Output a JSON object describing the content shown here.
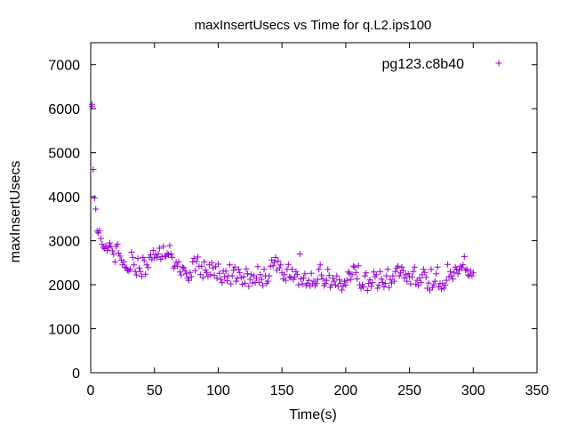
{
  "chart_data": {
    "type": "scatter",
    "title": "maxInsertUsecs vs Time for q.L2.ips100",
    "xlabel": "Time(s)",
    "ylabel": "maxInsertUsecs",
    "xlim": [
      0,
      350
    ],
    "ylim": [
      0,
      7500
    ],
    "xticks": [
      "0",
      "50",
      "100",
      "150",
      "200",
      "250",
      "300",
      "350"
    ],
    "yticks": [
      "0",
      "1000",
      "2000",
      "3000",
      "4000",
      "5000",
      "6000",
      "7000"
    ],
    "legend_position": "top-right",
    "marker": "plus",
    "grid": false,
    "series": [
      {
        "name": "pg123.c8b40",
        "color": "#9400d3",
        "points": [
          [
            1,
            6100
          ],
          [
            1,
            6050
          ],
          [
            2,
            4620
          ],
          [
            3,
            3970
          ],
          [
            4,
            3720
          ],
          [
            5,
            3220
          ],
          [
            6,
            3180
          ],
          [
            7,
            3230
          ],
          [
            8,
            3050
          ],
          [
            9,
            2920
          ],
          [
            10,
            2850
          ],
          [
            11,
            2820
          ],
          [
            12,
            2880
          ],
          [
            13,
            2780
          ],
          [
            14,
            2850
          ],
          [
            15,
            2950
          ],
          [
            16,
            2870
          ],
          [
            17,
            2770
          ],
          [
            18,
            2690
          ],
          [
            19,
            2520
          ],
          [
            20,
            2870
          ],
          [
            21,
            2920
          ],
          [
            22,
            2720
          ],
          [
            23,
            2650
          ],
          [
            24,
            2560
          ],
          [
            25,
            2450
          ],
          [
            26,
            2520
          ],
          [
            27,
            2400
          ],
          [
            28,
            2380
          ],
          [
            29,
            2330
          ],
          [
            30,
            2310
          ],
          [
            31,
            2350
          ],
          [
            32,
            2740
          ],
          [
            33,
            2620
          ],
          [
            34,
            2450
          ],
          [
            35,
            2300
          ],
          [
            36,
            2220
          ],
          [
            37,
            2600
          ],
          [
            38,
            2380
          ],
          [
            39,
            2300
          ],
          [
            40,
            2190
          ],
          [
            41,
            2620
          ],
          [
            42,
            2550
          ],
          [
            43,
            2240
          ],
          [
            44,
            2450
          ],
          [
            45,
            2390
          ],
          [
            46,
            2620
          ],
          [
            47,
            2680
          ],
          [
            48,
            2570
          ],
          [
            49,
            2780
          ],
          [
            50,
            2610
          ],
          [
            51,
            2690
          ],
          [
            52,
            2620
          ],
          [
            53,
            2700
          ],
          [
            54,
            2830
          ],
          [
            55,
            2580
          ],
          [
            56,
            2640
          ],
          [
            57,
            2870
          ],
          [
            58,
            2650
          ],
          [
            59,
            2640
          ],
          [
            60,
            2710
          ],
          [
            61,
            2680
          ],
          [
            62,
            2890
          ],
          [
            63,
            2700
          ],
          [
            64,
            2620
          ],
          [
            65,
            2380
          ],
          [
            66,
            2420
          ],
          [
            67,
            2510
          ],
          [
            68,
            2420
          ],
          [
            69,
            2520
          ],
          [
            70,
            2290
          ],
          [
            71,
            2220
          ],
          [
            72,
            2400
          ],
          [
            73,
            2380
          ],
          [
            74,
            2320
          ],
          [
            75,
            2250
          ],
          [
            76,
            2150
          ],
          [
            77,
            2100
          ],
          [
            78,
            2280
          ],
          [
            79,
            2180
          ],
          [
            80,
            2520
          ],
          [
            81,
            2600
          ],
          [
            82,
            2320
          ],
          [
            83,
            2530
          ],
          [
            84,
            2630
          ],
          [
            85,
            2420
          ],
          [
            86,
            2230
          ],
          [
            87,
            2420
          ],
          [
            88,
            2160
          ],
          [
            89,
            2520
          ],
          [
            90,
            2330
          ],
          [
            91,
            2280
          ],
          [
            92,
            2190
          ],
          [
            93,
            2450
          ],
          [
            94,
            2230
          ],
          [
            95,
            2500
          ],
          [
            96,
            2380
          ],
          [
            97,
            2210
          ],
          [
            98,
            2410
          ],
          [
            99,
            2150
          ],
          [
            100,
            2470
          ],
          [
            101,
            2260
          ],
          [
            102,
            2120
          ],
          [
            103,
            2050
          ],
          [
            104,
            2310
          ],
          [
            105,
            2180
          ],
          [
            106,
            2310
          ],
          [
            107,
            2090
          ],
          [
            108,
            2200
          ],
          [
            109,
            2450
          ],
          [
            110,
            2020
          ],
          [
            111,
            2200
          ],
          [
            112,
            2330
          ],
          [
            113,
            2400
          ],
          [
            114,
            2080
          ],
          [
            115,
            2150
          ],
          [
            116,
            2350
          ],
          [
            117,
            2270
          ],
          [
            118,
            2160
          ],
          [
            119,
            2010
          ],
          [
            120,
            2180
          ],
          [
            121,
            2030
          ],
          [
            122,
            2360
          ],
          [
            123,
            2250
          ],
          [
            124,
            1960
          ],
          [
            125,
            2120
          ],
          [
            126,
            2230
          ],
          [
            127,
            2040
          ],
          [
            128,
            2200
          ],
          [
            129,
            2050
          ],
          [
            130,
            2150
          ],
          [
            131,
            2410
          ],
          [
            132,
            2050
          ],
          [
            133,
            2230
          ],
          [
            134,
            2120
          ],
          [
            135,
            1980
          ],
          [
            136,
            2350
          ],
          [
            137,
            2200
          ],
          [
            138,
            2030
          ],
          [
            139,
            2080
          ],
          [
            140,
            2200
          ],
          [
            141,
            2420
          ],
          [
            142,
            2560
          ],
          [
            143,
            2430
          ],
          [
            144,
            2510
          ],
          [
            145,
            2620
          ],
          [
            146,
            2330
          ],
          [
            147,
            2540
          ],
          [
            148,
            2380
          ],
          [
            149,
            2450
          ],
          [
            150,
            2270
          ],
          [
            151,
            2130
          ],
          [
            152,
            2230
          ],
          [
            153,
            2100
          ],
          [
            154,
            2350
          ],
          [
            155,
            2460
          ],
          [
            156,
            2180
          ],
          [
            157,
            2160
          ],
          [
            158,
            2350
          ],
          [
            159,
            2120
          ],
          [
            160,
            2180
          ],
          [
            161,
            2300
          ],
          [
            162,
            2230
          ],
          [
            163,
            2000
          ],
          [
            164,
            2700
          ],
          [
            165,
            2130
          ],
          [
            166,
            2020
          ],
          [
            167,
            2150
          ],
          [
            168,
            2250
          ],
          [
            169,
            1980
          ],
          [
            170,
            2030
          ],
          [
            171,
            2100
          ],
          [
            172,
            1970
          ],
          [
            173,
            2260
          ],
          [
            174,
            2020
          ],
          [
            175,
            2080
          ],
          [
            176,
            1980
          ],
          [
            177,
            2030
          ],
          [
            178,
            2120
          ],
          [
            179,
            2350
          ],
          [
            180,
            2450
          ],
          [
            181,
            2220
          ],
          [
            182,
            2130
          ],
          [
            183,
            1980
          ],
          [
            184,
            2030
          ],
          [
            185,
            2100
          ],
          [
            186,
            2350
          ],
          [
            187,
            2210
          ],
          [
            188,
            1940
          ],
          [
            189,
            2000
          ],
          [
            190,
            2150
          ],
          [
            191,
            2080
          ],
          [
            192,
            1990
          ],
          [
            193,
            2200
          ],
          [
            194,
            1960
          ],
          [
            195,
            2110
          ],
          [
            196,
            2030
          ],
          [
            197,
            1880
          ],
          [
            198,
            1970
          ],
          [
            199,
            2080
          ],
          [
            200,
            1990
          ],
          [
            201,
            2100
          ],
          [
            202,
            2290
          ],
          [
            203,
            2260
          ],
          [
            204,
            2120
          ],
          [
            205,
            2230
          ],
          [
            206,
            2420
          ],
          [
            207,
            2400
          ],
          [
            208,
            2280
          ],
          [
            209,
            2130
          ],
          [
            210,
            2430
          ],
          [
            211,
            2000
          ],
          [
            212,
            1920
          ],
          [
            213,
            2000
          ],
          [
            214,
            1950
          ],
          [
            215,
            2200
          ],
          [
            216,
            2270
          ],
          [
            217,
            1870
          ],
          [
            218,
            2030
          ],
          [
            219,
            2110
          ],
          [
            220,
            1960
          ],
          [
            221,
            2050
          ],
          [
            222,
            2290
          ],
          [
            223,
            2180
          ],
          [
            224,
            2230
          ],
          [
            225,
            1920
          ],
          [
            226,
            1990
          ],
          [
            227,
            2300
          ],
          [
            228,
            2130
          ],
          [
            229,
            2050
          ],
          [
            230,
            1950
          ],
          [
            231,
            2030
          ],
          [
            232,
            2200
          ],
          [
            233,
            2350
          ],
          [
            234,
            1940
          ],
          [
            235,
            2120
          ],
          [
            236,
            2040
          ],
          [
            237,
            2200
          ],
          [
            238,
            2080
          ],
          [
            239,
            2300
          ],
          [
            240,
            2380
          ],
          [
            241,
            2420
          ],
          [
            242,
            2200
          ],
          [
            243,
            2270
          ],
          [
            244,
            2400
          ],
          [
            245,
            2320
          ],
          [
            246,
            2150
          ],
          [
            247,
            2230
          ],
          [
            248,
            2080
          ],
          [
            249,
            2250
          ],
          [
            250,
            2180
          ],
          [
            251,
            2020
          ],
          [
            252,
            2180
          ],
          [
            253,
            2300
          ],
          [
            254,
            2400
          ],
          [
            255,
            2010
          ],
          [
            256,
            2100
          ],
          [
            257,
            1980
          ],
          [
            258,
            2150
          ],
          [
            259,
            2050
          ],
          [
            260,
            2230
          ],
          [
            261,
            2350
          ],
          [
            262,
            2280
          ],
          [
            263,
            2170
          ],
          [
            264,
            1920
          ],
          [
            265,
            2040
          ],
          [
            266,
            1880
          ],
          [
            267,
            2350
          ],
          [
            268,
            1940
          ],
          [
            269,
            2000
          ],
          [
            270,
            2080
          ],
          [
            271,
            2250
          ],
          [
            272,
            2400
          ],
          [
            273,
            1950
          ],
          [
            274,
            2030
          ],
          [
            275,
            1900
          ],
          [
            276,
            2030
          ],
          [
            277,
            1920
          ],
          [
            278,
            1990
          ],
          [
            279,
            2100
          ],
          [
            280,
            2460
          ],
          [
            281,
            2180
          ],
          [
            282,
            2300
          ],
          [
            283,
            2200
          ],
          [
            284,
            2130
          ],
          [
            285,
            2280
          ],
          [
            286,
            2400
          ],
          [
            287,
            2350
          ],
          [
            288,
            2250
          ],
          [
            289,
            2330
          ],
          [
            290,
            2420
          ],
          [
            291,
            2380
          ],
          [
            292,
            2450
          ],
          [
            293,
            2640
          ],
          [
            294,
            2330
          ],
          [
            295,
            2350
          ],
          [
            296,
            2220
          ],
          [
            297,
            2200
          ],
          [
            298,
            2310
          ],
          [
            299,
            2200
          ],
          [
            300,
            2270
          ]
        ]
      }
    ]
  }
}
